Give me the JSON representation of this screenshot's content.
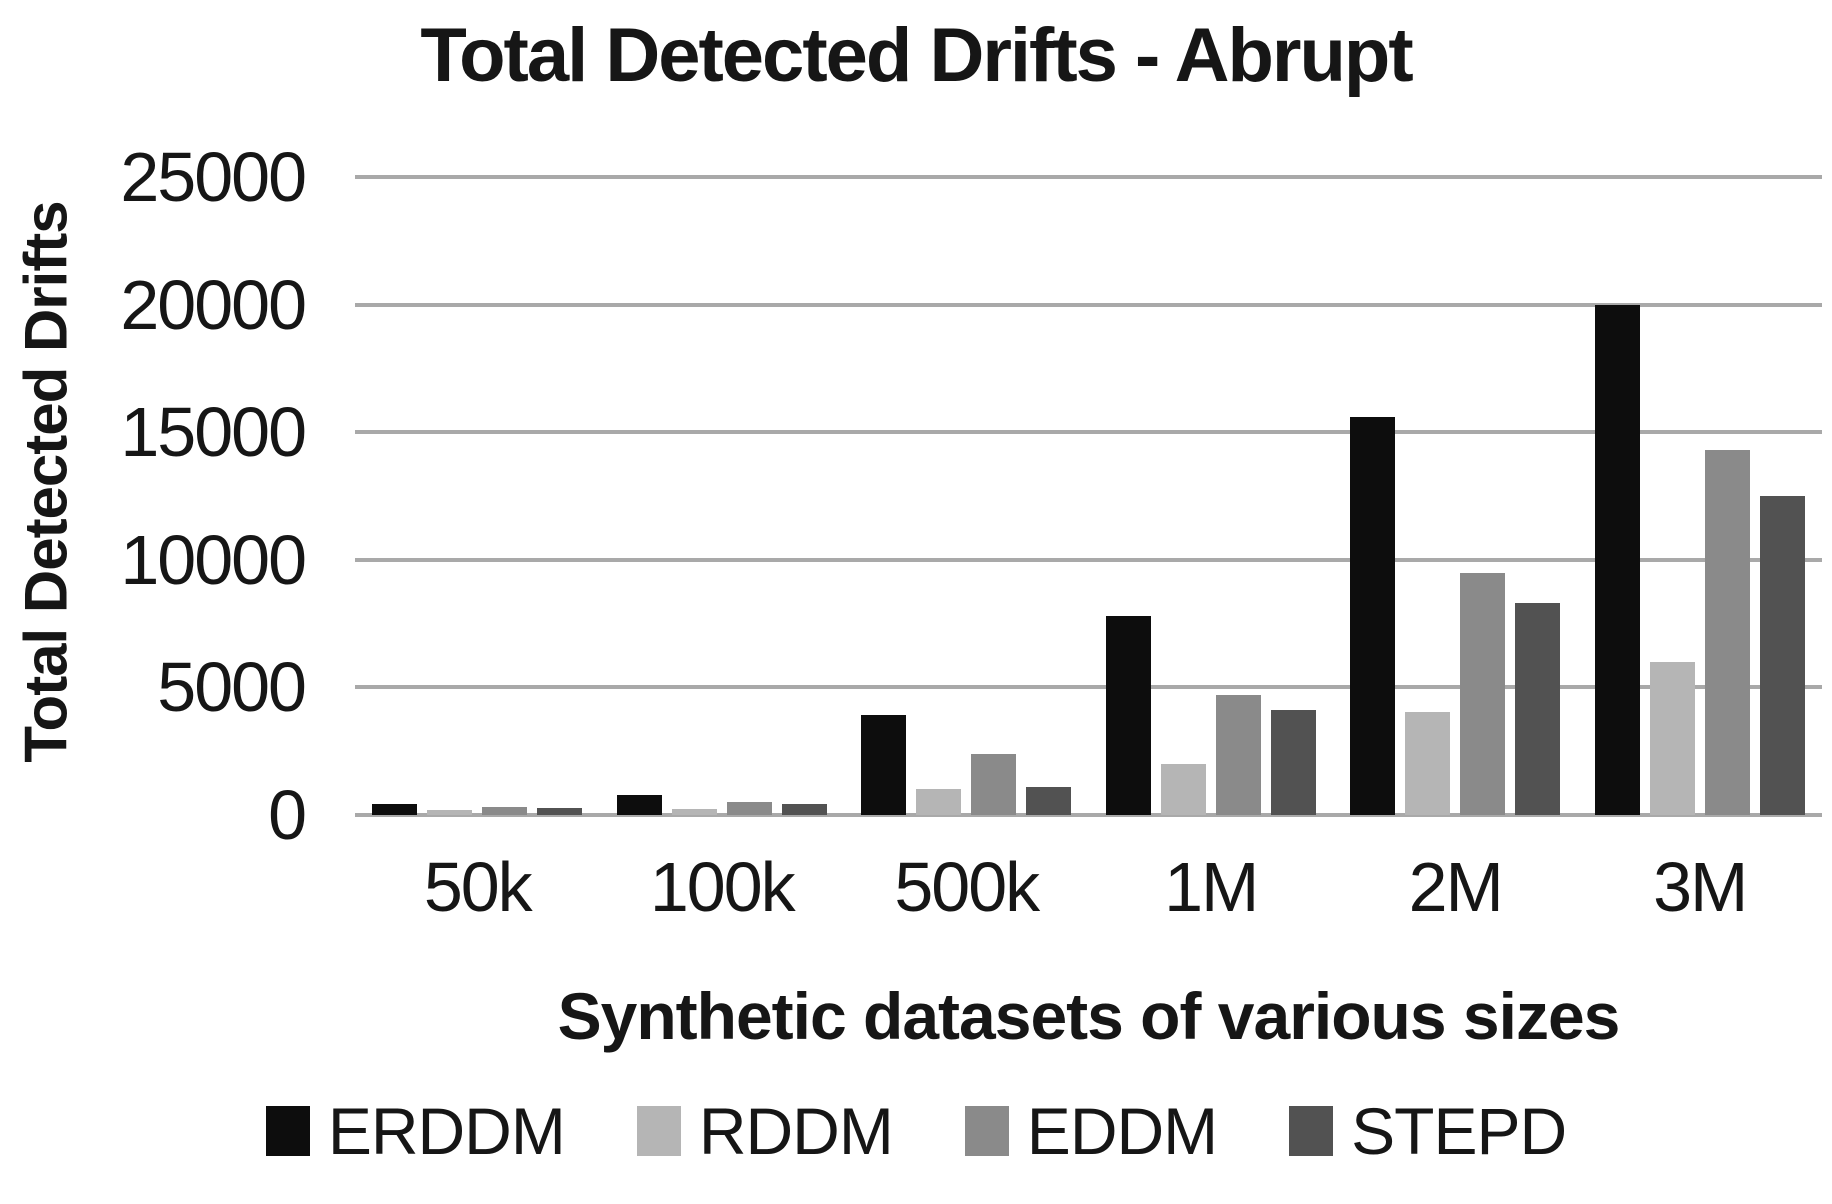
{
  "chart_data": {
    "type": "bar",
    "title": "Total Detected Drifts - Abrupt",
    "xlabel": "Synthetic datasets of various sizes",
    "ylabel": "Total Detected Drifts",
    "categories": [
      "50k",
      "100k",
      "500k",
      "1M",
      "2M",
      "3M"
    ],
    "series": [
      {
        "name": "ERDDM",
        "color": "#0d0d0d",
        "values": [
          420,
          780,
          3900,
          7800,
          15600,
          20000
        ]
      },
      {
        "name": "RDDM",
        "color": "#b5b5b5",
        "values": [
          200,
          220,
          1000,
          2000,
          4050,
          6000
        ]
      },
      {
        "name": "EDDM",
        "color": "#8a8a8a",
        "values": [
          320,
          500,
          2400,
          4700,
          9500,
          14300
        ]
      },
      {
        "name": "STEPD",
        "color": "#525252",
        "values": [
          260,
          420,
          1100,
          4100,
          8300,
          12500
        ]
      }
    ],
    "ylim": [
      0,
      25000
    ],
    "yticks": [
      0,
      5000,
      10000,
      15000,
      20000,
      25000
    ],
    "grid": true,
    "gridline_color": "#a9a9a9",
    "legend_position": "bottom",
    "text_color": "#161616",
    "background_color": "#ffffff"
  }
}
